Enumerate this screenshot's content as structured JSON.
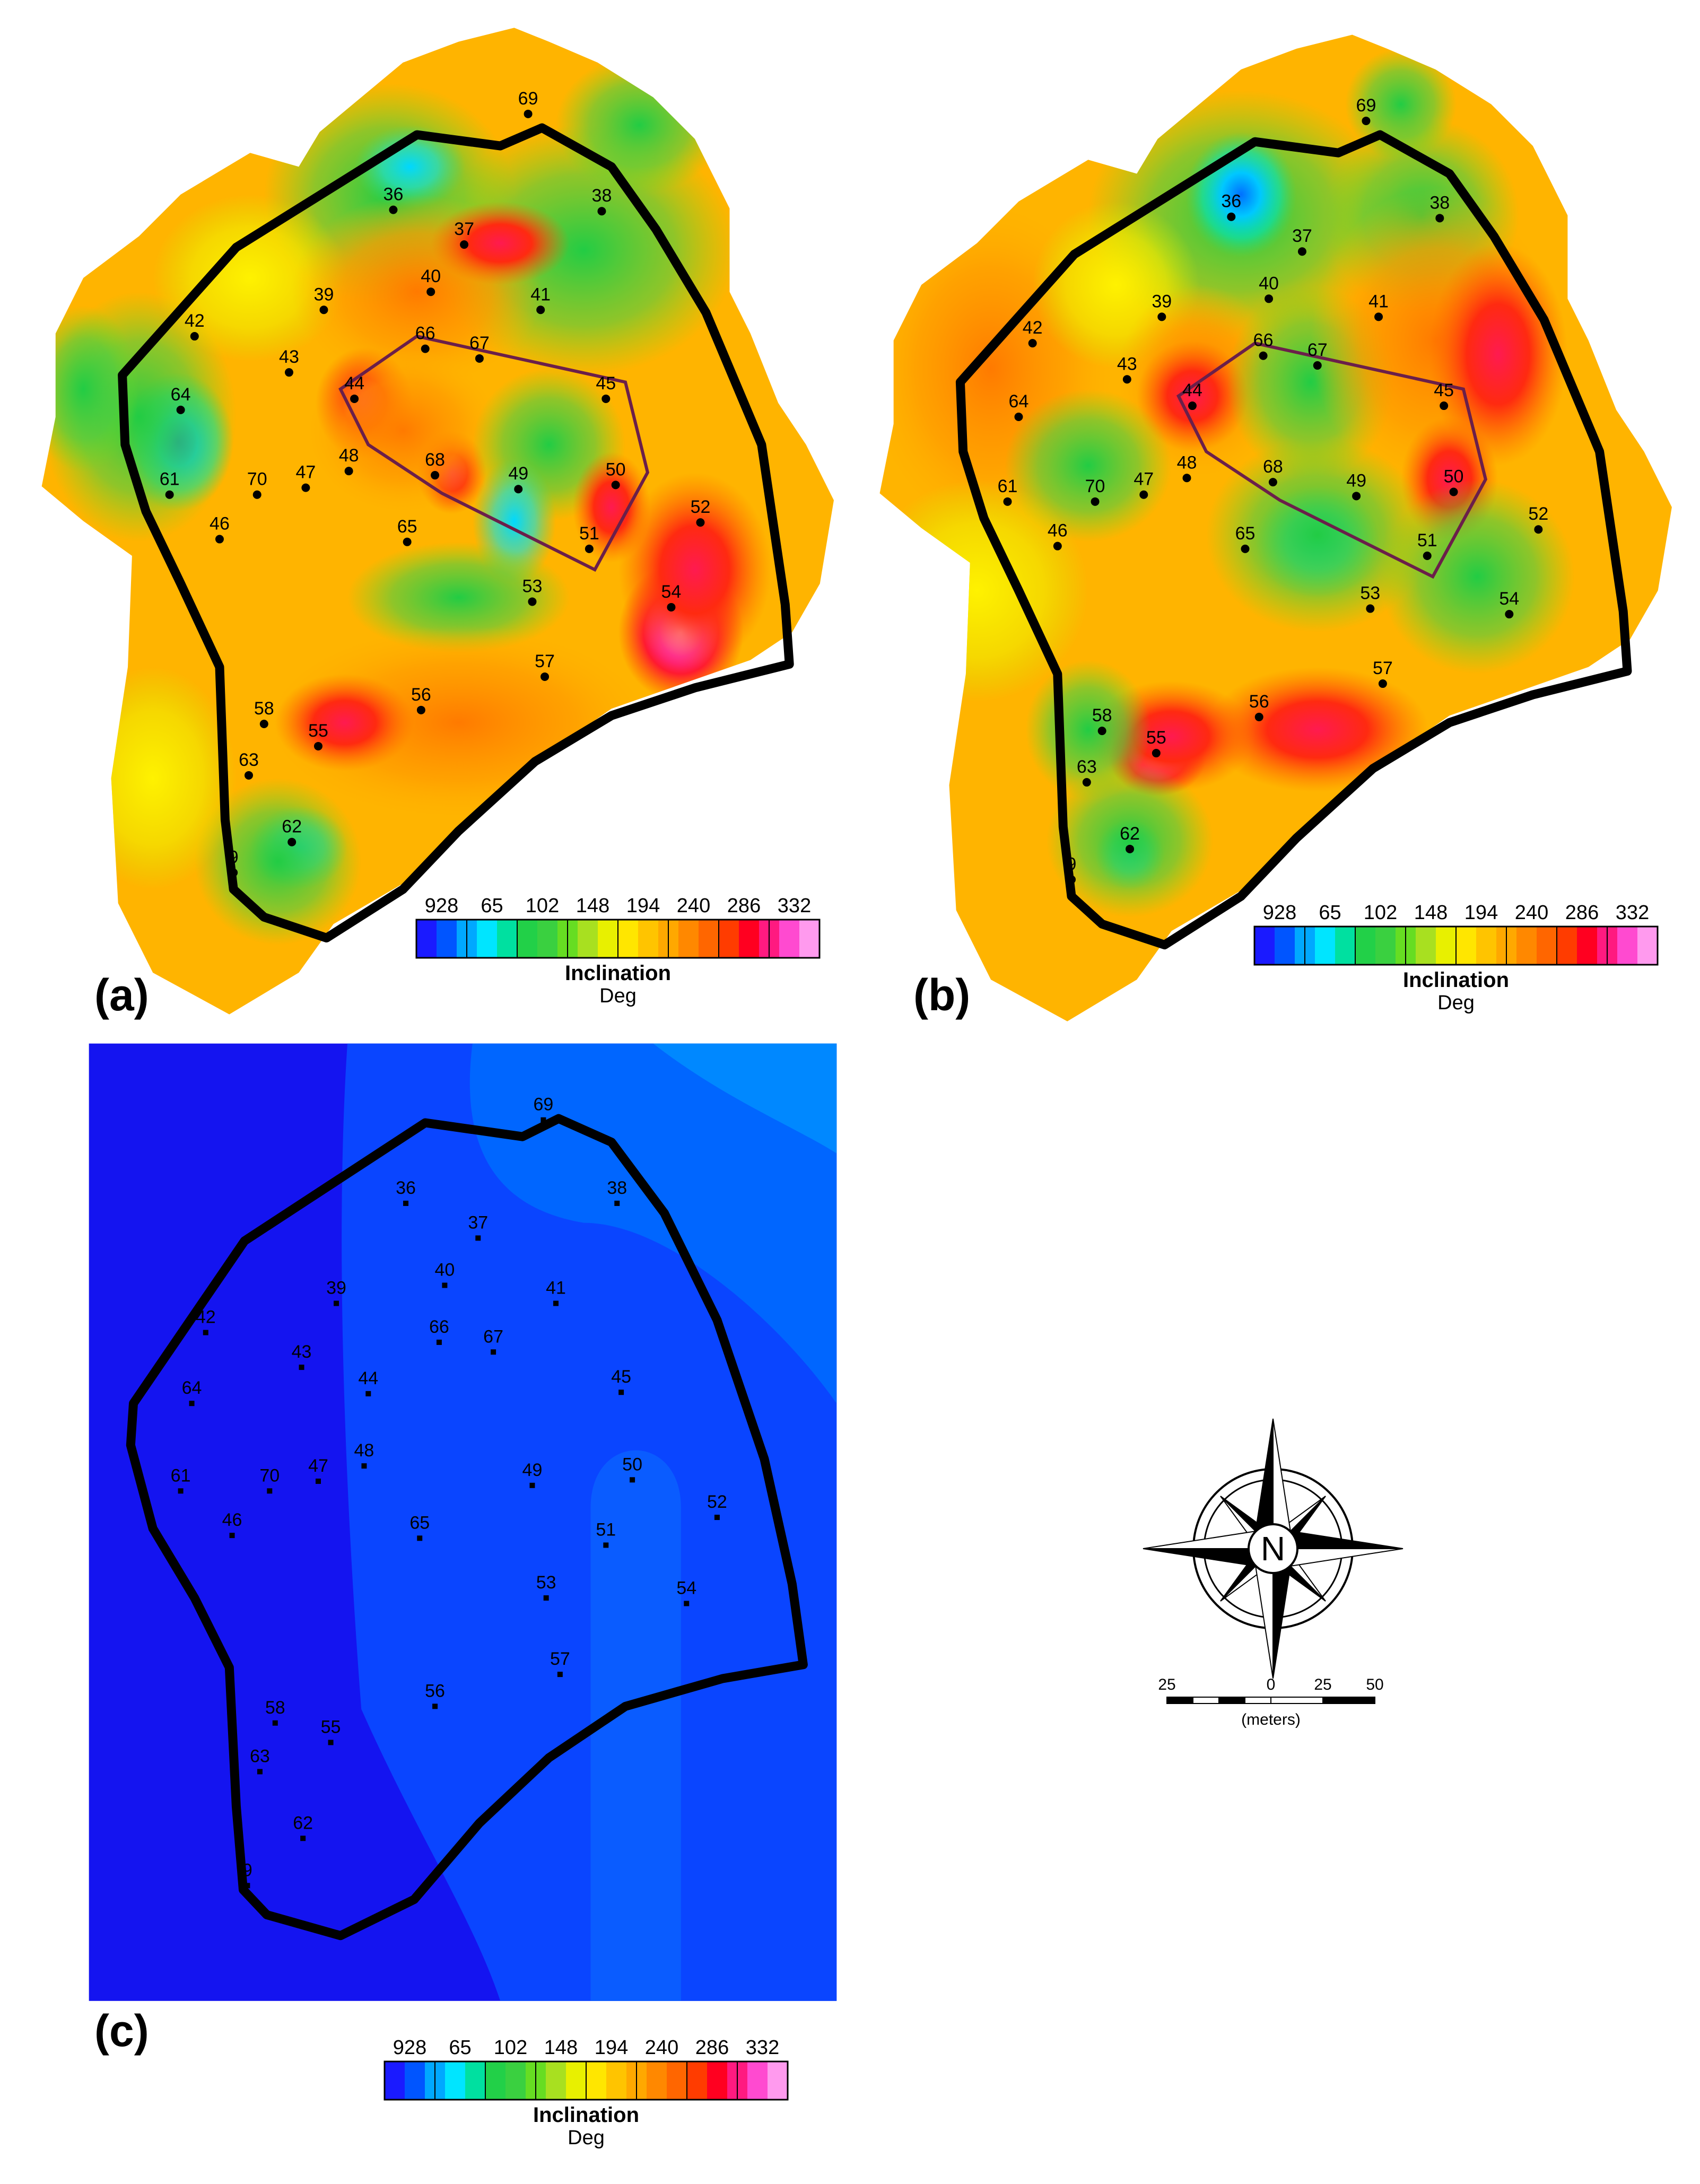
{
  "panels": [
    {
      "id": "a",
      "label": "(a)",
      "boundary_color": "#000000",
      "polygon_color": "#6b1f4a"
    },
    {
      "id": "b",
      "label": "(b)",
      "boundary_color": "#000000",
      "polygon_color": "#6b1f4a"
    },
    {
      "id": "c",
      "label": "(c)",
      "boundary_color": "#000000"
    }
  ],
  "legend": {
    "ticks": [
      "928",
      "65",
      "102",
      "148",
      "194",
      "240",
      "286",
      "332"
    ],
    "title": "Inclination",
    "unit": "Deg",
    "colors": [
      "#1a1aff",
      "#0055ff",
      "#00a8ff",
      "#00e5ff",
      "#00e0a0",
      "#22d048",
      "#3ad040",
      "#66dd22",
      "#a8e020",
      "#e8f000",
      "#ffe600",
      "#ffc400",
      "#ffa800",
      "#ff8800",
      "#ff6600",
      "#ff3c00",
      "#ff0020",
      "#ff1a80",
      "#ff4ad0",
      "#ff9aee"
    ]
  },
  "stations": [
    "36",
    "37",
    "38",
    "39",
    "40",
    "41",
    "42",
    "43",
    "44",
    "45",
    "46",
    "47",
    "48",
    "49",
    "50",
    "51",
    "52",
    "53",
    "54",
    "55",
    "56",
    "57",
    "58",
    "61",
    "62",
    "63",
    "64",
    "65",
    "66",
    "67",
    "68",
    "69",
    "70",
    "9"
  ],
  "north_arrow": {
    "letter": "N",
    "icon": "compass-rose-icon"
  },
  "scale_bar": {
    "ticks": [
      "25",
      "0",
      "25",
      "50"
    ],
    "unit": "(meters)"
  }
}
